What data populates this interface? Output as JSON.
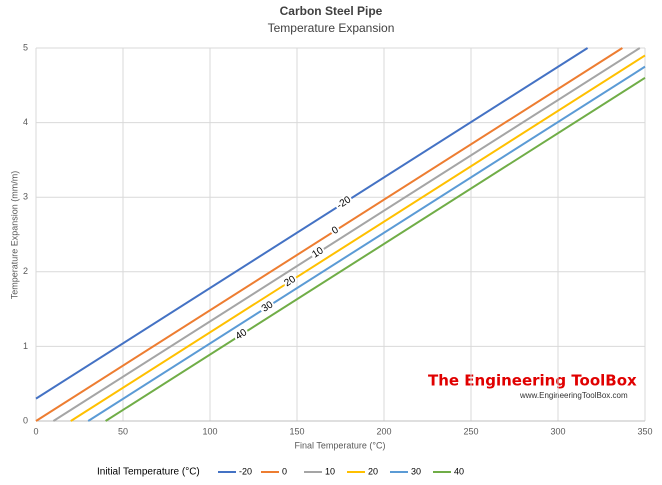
{
  "chart_data": {
    "type": "line",
    "title": "Carbon Steel Pipe",
    "subtitle": "Temperature Expansion",
    "x_label": "Final Temperature  (°C)",
    "y_label": "Temperature Expansion (mm/m)",
    "legend_title": "Initial Temperature (°C)",
    "legend_position": "bottom",
    "watermark": "The Engineering ToolBox",
    "watermark_url": "www.EngineeringToolBox.com",
    "xlim": [
      0,
      350
    ],
    "xticks": [
      0,
      50,
      100,
      150,
      200,
      250,
      300,
      350
    ],
    "ylim": [
      0,
      5
    ],
    "yticks": [
      0,
      1,
      2,
      3,
      4,
      5
    ],
    "grid": true,
    "series": [
      {
        "name": "-20",
        "color": "#4472c4",
        "x": [
          0,
          317
        ],
        "values": [
          0.3,
          5
        ]
      },
      {
        "name": "0",
        "color": "#ed7d31",
        "x": [
          0,
          337
        ],
        "values": [
          0,
          5
        ]
      },
      {
        "name": "10",
        "color": "#a5a5a5",
        "x": [
          10,
          347
        ],
        "values": [
          0,
          5
        ]
      },
      {
        "name": "20",
        "color": "#ffc000",
        "x": [
          20,
          350
        ],
        "values": [
          0,
          4.9
        ]
      },
      {
        "name": "30",
        "color": "#5b9bd5",
        "x": [
          30,
          350
        ],
        "values": [
          0,
          4.75
        ]
      },
      {
        "name": "40",
        "color": "#70ad47",
        "x": [
          40,
          350
        ],
        "values": [
          0,
          4.6
        ]
      }
    ]
  }
}
